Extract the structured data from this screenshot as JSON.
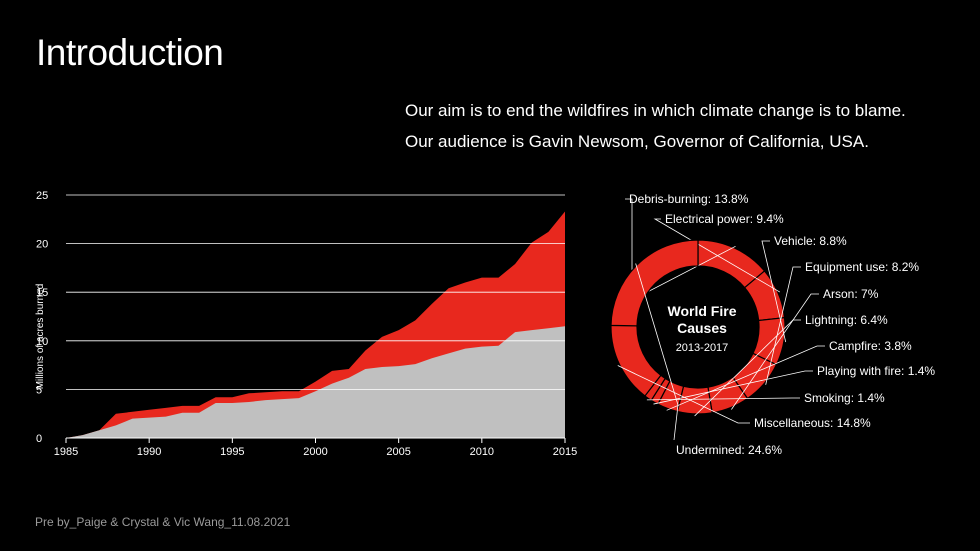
{
  "slide": {
    "title": "Introduction",
    "aim_line1": "Our aim is to end the wildfires in which climate change is to blame.",
    "aim_line2": "Our audience is Gavin Newsom, Governor of California, USA.",
    "footer": "Pre by_Paige & Crystal & Vic Wang_11.08.2021"
  },
  "colors": {
    "red": "#e8281e",
    "gray": "#c0c0c0",
    "background": "#000000"
  },
  "chart_data": [
    {
      "type": "area",
      "ylabel": "Millions of acres burned",
      "ylim": [
        0,
        25
      ],
      "xlim": [
        1985,
        2015
      ],
      "yticks": [
        0,
        5,
        10,
        15,
        20,
        25
      ],
      "xticks": [
        1985,
        1990,
        1995,
        2000,
        2005,
        2010,
        2015
      ],
      "grid": true,
      "x": [
        1985,
        1986,
        1987,
        1988,
        1989,
        1990,
        1991,
        1992,
        1993,
        1994,
        1995,
        1996,
        1997,
        1998,
        1999,
        2000,
        2001,
        2002,
        2003,
        2004,
        2005,
        2006,
        2007,
        2008,
        2009,
        2010,
        2011,
        2012,
        2013,
        2014,
        2015
      ],
      "series": [
        {
          "values": [
            0,
            0.3,
            0.8,
            1.3,
            2.0,
            2.1,
            2.2,
            2.6,
            2.6,
            3.6,
            3.6,
            3.7,
            3.9,
            4.0,
            4.1,
            4.8,
            5.6,
            6.2,
            7.1,
            7.3,
            7.4,
            7.6,
            8.2,
            8.7,
            9.2,
            9.4,
            9.5,
            10.9,
            11.1,
            11.3,
            11.5
          ]
        },
        {
          "values": [
            0,
            0.3,
            0.8,
            2.5,
            2.7,
            2.9,
            3.1,
            3.3,
            3.3,
            4.2,
            4.2,
            4.6,
            4.7,
            4.8,
            4.8,
            5.8,
            6.9,
            7.1,
            9.0,
            10.4,
            11.1,
            12.1,
            13.8,
            15.4,
            16.0,
            16.5,
            16.5,
            17.9,
            20.1,
            21.2,
            23.3
          ]
        }
      ]
    },
    {
      "type": "pie",
      "title": "World Fire Causes",
      "subtitle": "2013-2017",
      "slices": [
        {
          "label": "Debris-burning: 13.8%",
          "value": 13.8
        },
        {
          "label": "Electrical power: 9.4%",
          "value": 9.4
        },
        {
          "label": "Vehicle: 8.8%",
          "value": 8.8
        },
        {
          "label": "Equipment use: 8.2%",
          "value": 8.2
        },
        {
          "label": "Arson: 7%",
          "value": 7.0
        },
        {
          "label": "Lightning: 6.4%",
          "value": 6.4
        },
        {
          "label": "Campfire: 3.8%",
          "value": 3.8
        },
        {
          "label": "Playing with fire: 1.4%",
          "value": 1.4
        },
        {
          "label": "Smoking: 1.4%",
          "value": 1.4
        },
        {
          "label": "Miscellaneous: 14.8%",
          "value": 14.8
        },
        {
          "label": "Undermined: 24.6%",
          "value": 24.6
        }
      ]
    }
  ]
}
